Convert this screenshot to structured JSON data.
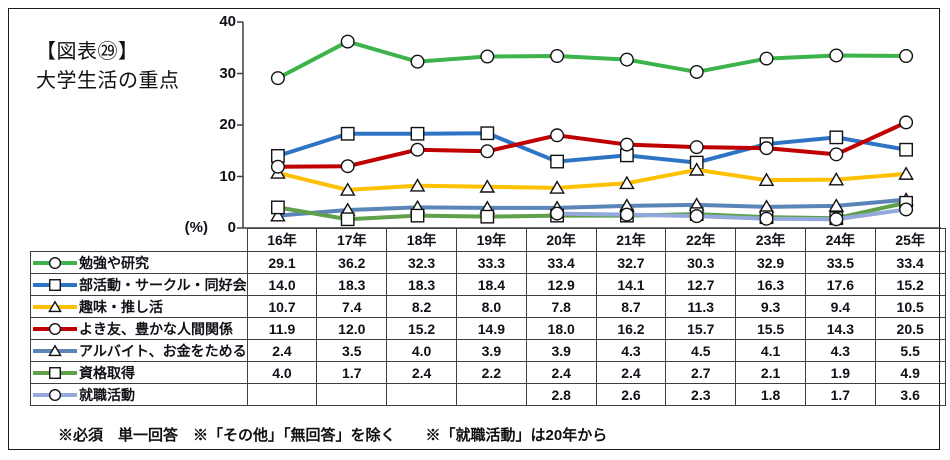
{
  "title": {
    "line1": "【図表㉙】",
    "line2": "大学生活の重点"
  },
  "y_axis": {
    "unit": "(%)",
    "ticks": [
      0,
      10,
      20,
      30,
      40
    ]
  },
  "footer": "※必須　単一回答　※「その他」「無回答」を除く　　※「就職活動」は20年から",
  "chart_data": {
    "type": "line",
    "title": "【図表㉙】大学生活の重点",
    "xlabel": "",
    "ylabel": "(%)",
    "ylim": [
      0,
      40
    ],
    "yticks": [
      0,
      10,
      20,
      30,
      40
    ],
    "grid": false,
    "legend_position": "table-left",
    "categories": [
      "16年",
      "17年",
      "18年",
      "19年",
      "20年",
      "21年",
      "22年",
      "23年",
      "24年",
      "25年"
    ],
    "series": [
      {
        "name": "勉強や研究",
        "color": "#3cb44b",
        "marker": "circle",
        "values": [
          29.1,
          36.2,
          32.3,
          33.3,
          33.4,
          32.7,
          30.3,
          32.9,
          33.5,
          33.4
        ]
      },
      {
        "name": "部活動・サークル・同好会",
        "color": "#2e74c4",
        "marker": "square",
        "values": [
          14.0,
          18.3,
          18.3,
          18.4,
          12.9,
          14.1,
          12.7,
          16.3,
          17.6,
          15.2
        ]
      },
      {
        "name": "趣味・推し活",
        "color": "#ffc000",
        "marker": "triangle",
        "values": [
          10.7,
          7.4,
          8.2,
          8.0,
          7.8,
          8.7,
          11.3,
          9.3,
          9.4,
          10.5
        ]
      },
      {
        "name": "よき友、豊かな人間関係",
        "color": "#c00000",
        "marker": "circle",
        "values": [
          11.9,
          12.0,
          15.2,
          14.9,
          18.0,
          16.2,
          15.7,
          15.5,
          14.3,
          20.5
        ]
      },
      {
        "name": "アルバイト、お金をためる",
        "color": "#5b84b8",
        "marker": "triangle",
        "values": [
          2.4,
          3.5,
          4.0,
          3.9,
          3.9,
          4.3,
          4.5,
          4.1,
          4.3,
          5.5
        ]
      },
      {
        "name": "資格取得",
        "color": "#5fa04b",
        "marker": "square",
        "values": [
          4.0,
          1.7,
          2.4,
          2.2,
          2.4,
          2.4,
          2.7,
          2.1,
          1.9,
          4.9
        ]
      },
      {
        "name": "就職活動",
        "color": "#93a9dc",
        "marker": "circle",
        "values": [
          null,
          null,
          null,
          null,
          2.8,
          2.6,
          2.3,
          1.8,
          1.7,
          3.6
        ]
      }
    ]
  }
}
